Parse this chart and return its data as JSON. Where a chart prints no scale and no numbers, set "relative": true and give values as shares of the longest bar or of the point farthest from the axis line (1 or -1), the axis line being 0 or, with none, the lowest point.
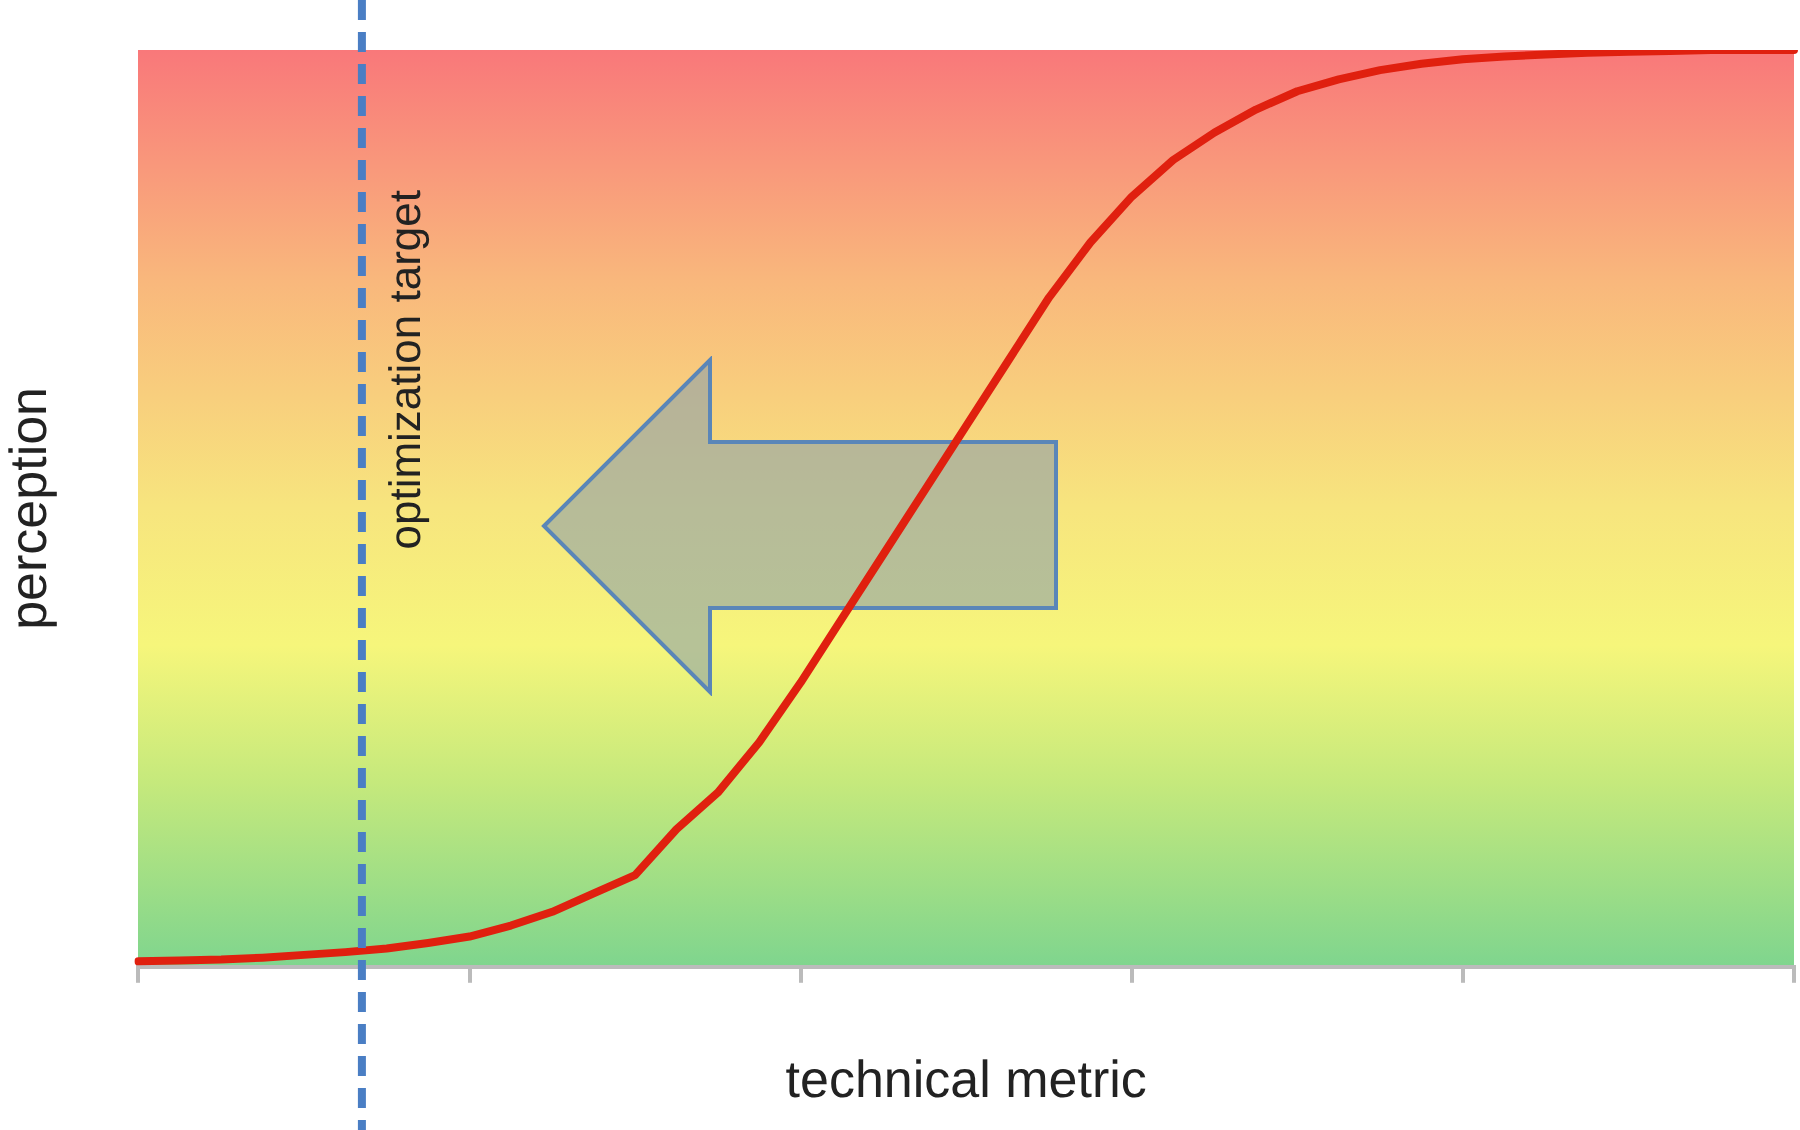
{
  "chart_data": {
    "type": "line",
    "xlabel": "technical metric",
    "ylabel": "perception",
    "relative": true,
    "categories": [
      null,
      null,
      null,
      null,
      null,
      null,
      null,
      null,
      null,
      null,
      null,
      null,
      null,
      null,
      null,
      null,
      null,
      null,
      null,
      null,
      null,
      null,
      null,
      null,
      null,
      null,
      null,
      null,
      null,
      null,
      null,
      null,
      null,
      null,
      null,
      null,
      null,
      null,
      null,
      null,
      null
    ],
    "series": [
      {
        "color": "#e0200f",
        "values": [
          0.006,
          0.007,
          0.008,
          0.01,
          0.013,
          0.016,
          0.02,
          0.026,
          0.033,
          0.045,
          0.06,
          0.08,
          0.1,
          0.15,
          0.19,
          0.245,
          0.31,
          0.38,
          0.45,
          0.52,
          0.59,
          0.66,
          0.73,
          0.79,
          0.84,
          0.88,
          0.91,
          0.935,
          0.955,
          0.968,
          0.978,
          0.985,
          0.99,
          0.993,
          0.995,
          0.997,
          0.998,
          0.999,
          1,
          1,
          1
        ]
      }
    ],
    "annotations": [
      "optimization target"
    ],
    "marker": "none",
    "line_style": "solid",
    "grid": false,
    "legend": false
  }
}
